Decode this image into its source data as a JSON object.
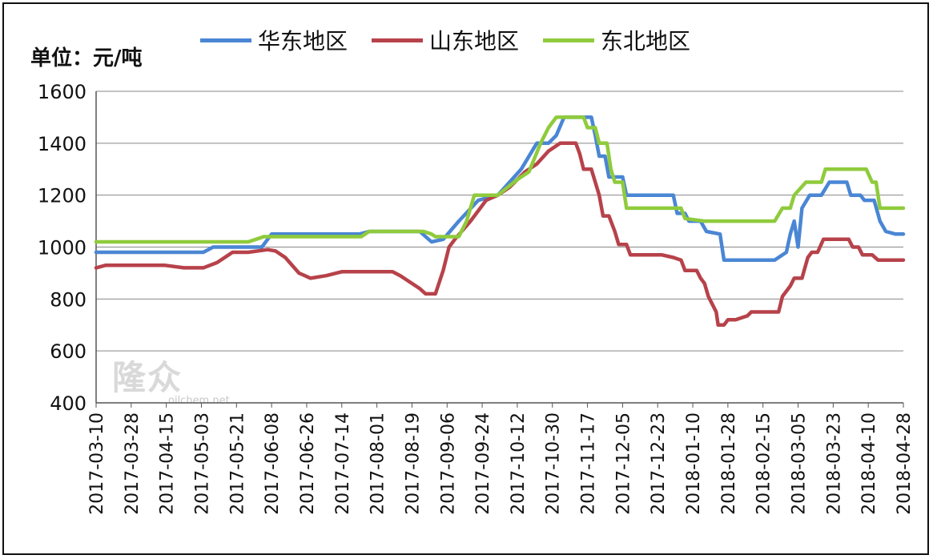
{
  "chart_data": {
    "type": "line",
    "unit_label": "单位：元/吨",
    "y_ticks": [
      "1600",
      "1400",
      "1200",
      "1000",
      "800",
      "600",
      "400"
    ],
    "ylim": [
      400,
      1600
    ],
    "x_tick_labels": [
      "2017-03-10",
      "2017-03-28",
      "2017-04-15",
      "2017-05-03",
      "2017-05-21",
      "2017-06-08",
      "2017-06-26",
      "2017-07-14",
      "2017-08-01",
      "2017-08-19",
      "2017-09-06",
      "2017-09-24",
      "2017-10-12",
      "2017-10-30",
      "2017-11-17",
      "2017-12-05",
      "2017-12-23",
      "2018-01-10",
      "2018-01-28",
      "2018-02-15",
      "2018-03-05",
      "2018-03-23",
      "2018-04-10",
      "2018-04-28"
    ],
    "x_range_days": [
      0,
      414
    ],
    "series": [
      {
        "name": "华东地区",
        "color": "#4a86d4",
        "points": [
          [
            0,
            980
          ],
          [
            55,
            980
          ],
          [
            60,
            1000
          ],
          [
            85,
            1000
          ],
          [
            90,
            1050
          ],
          [
            135,
            1050
          ],
          [
            140,
            1060
          ],
          [
            166,
            1060
          ],
          [
            172,
            1020
          ],
          [
            178,
            1030
          ],
          [
            186,
            1100
          ],
          [
            196,
            1180
          ],
          [
            206,
            1200
          ],
          [
            218,
            1300
          ],
          [
            226,
            1400
          ],
          [
            232,
            1400
          ],
          [
            236,
            1430
          ],
          [
            240,
            1500
          ],
          [
            254,
            1500
          ],
          [
            256,
            1430
          ],
          [
            258,
            1350
          ],
          [
            261,
            1350
          ],
          [
            263,
            1270
          ],
          [
            270,
            1270
          ],
          [
            272,
            1200
          ],
          [
            296,
            1200
          ],
          [
            298,
            1130
          ],
          [
            302,
            1130
          ],
          [
            304,
            1100
          ],
          [
            310,
            1100
          ],
          [
            313,
            1060
          ],
          [
            320,
            1050
          ],
          [
            322,
            950
          ],
          [
            348,
            950
          ],
          [
            354,
            980
          ],
          [
            356,
            1050
          ],
          [
            358,
            1100
          ],
          [
            360,
            1000
          ],
          [
            362,
            1150
          ],
          [
            366,
            1200
          ],
          [
            372,
            1200
          ],
          [
            376,
            1250
          ],
          [
            385,
            1250
          ],
          [
            387,
            1200
          ],
          [
            392,
            1200
          ],
          [
            394,
            1180
          ],
          [
            399,
            1180
          ],
          [
            402,
            1100
          ],
          [
            405,
            1060
          ],
          [
            410,
            1050
          ],
          [
            414,
            1050
          ]
        ]
      },
      {
        "name": "山东地区",
        "color": "#b7424a",
        "points": [
          [
            0,
            920
          ],
          [
            5,
            930
          ],
          [
            35,
            930
          ],
          [
            45,
            920
          ],
          [
            55,
            920
          ],
          [
            62,
            940
          ],
          [
            70,
            980
          ],
          [
            78,
            980
          ],
          [
            88,
            990
          ],
          [
            92,
            985
          ],
          [
            97,
            960
          ],
          [
            104,
            900
          ],
          [
            110,
            880
          ],
          [
            118,
            890
          ],
          [
            126,
            905
          ],
          [
            152,
            905
          ],
          [
            156,
            890
          ],
          [
            166,
            840
          ],
          [
            169,
            820
          ],
          [
            174,
            820
          ],
          [
            178,
            910
          ],
          [
            181,
            1000
          ],
          [
            184,
            1030
          ],
          [
            192,
            1100
          ],
          [
            200,
            1180
          ],
          [
            206,
            1200
          ],
          [
            212,
            1230
          ],
          [
            220,
            1290
          ],
          [
            226,
            1320
          ],
          [
            232,
            1370
          ],
          [
            238,
            1400
          ],
          [
            246,
            1400
          ],
          [
            248,
            1360
          ],
          [
            250,
            1300
          ],
          [
            254,
            1300
          ],
          [
            256,
            1250
          ],
          [
            258,
            1200
          ],
          [
            260,
            1120
          ],
          [
            263,
            1120
          ],
          [
            266,
            1060
          ],
          [
            268,
            1010
          ],
          [
            272,
            1010
          ],
          [
            274,
            970
          ],
          [
            290,
            970
          ],
          [
            296,
            960
          ],
          [
            300,
            950
          ],
          [
            302,
            910
          ],
          [
            308,
            910
          ],
          [
            310,
            880
          ],
          [
            312,
            860
          ],
          [
            314,
            810
          ],
          [
            316,
            780
          ],
          [
            318,
            750
          ],
          [
            319,
            700
          ],
          [
            322,
            700
          ],
          [
            324,
            720
          ],
          [
            328,
            720
          ],
          [
            332,
            730
          ],
          [
            334,
            735
          ],
          [
            336,
            750
          ],
          [
            350,
            750
          ],
          [
            352,
            810
          ],
          [
            356,
            850
          ],
          [
            358,
            880
          ],
          [
            362,
            880
          ],
          [
            365,
            960
          ],
          [
            367,
            980
          ],
          [
            370,
            980
          ],
          [
            373,
            1030
          ],
          [
            386,
            1030
          ],
          [
            388,
            1000
          ],
          [
            391,
            1000
          ],
          [
            393,
            970
          ],
          [
            398,
            970
          ],
          [
            401,
            950
          ],
          [
            414,
            950
          ]
        ]
      },
      {
        "name": "东北地区",
        "color": "#8fcb3c",
        "points": [
          [
            0,
            1020
          ],
          [
            78,
            1020
          ],
          [
            82,
            1030
          ],
          [
            86,
            1040
          ],
          [
            136,
            1040
          ],
          [
            140,
            1060
          ],
          [
            168,
            1060
          ],
          [
            172,
            1050
          ],
          [
            174,
            1040
          ],
          [
            186,
            1040
          ],
          [
            190,
            1100
          ],
          [
            194,
            1200
          ],
          [
            206,
            1200
          ],
          [
            216,
            1260
          ],
          [
            222,
            1290
          ],
          [
            228,
            1400
          ],
          [
            232,
            1460
          ],
          [
            236,
            1500
          ],
          [
            250,
            1500
          ],
          [
            252,
            1460
          ],
          [
            256,
            1460
          ],
          [
            258,
            1400
          ],
          [
            262,
            1400
          ],
          [
            264,
            1300
          ],
          [
            266,
            1250
          ],
          [
            270,
            1250
          ],
          [
            272,
            1150
          ],
          [
            300,
            1150
          ],
          [
            302,
            1110
          ],
          [
            312,
            1100
          ],
          [
            348,
            1100
          ],
          [
            352,
            1150
          ],
          [
            356,
            1150
          ],
          [
            358,
            1200
          ],
          [
            364,
            1250
          ],
          [
            372,
            1250
          ],
          [
            374,
            1300
          ],
          [
            395,
            1300
          ],
          [
            398,
            1250
          ],
          [
            400,
            1250
          ],
          [
            402,
            1150
          ],
          [
            414,
            1150
          ]
        ]
      }
    ]
  },
  "watermark": {
    "logo_text": "隆众",
    "site": "oilchem.net"
  }
}
